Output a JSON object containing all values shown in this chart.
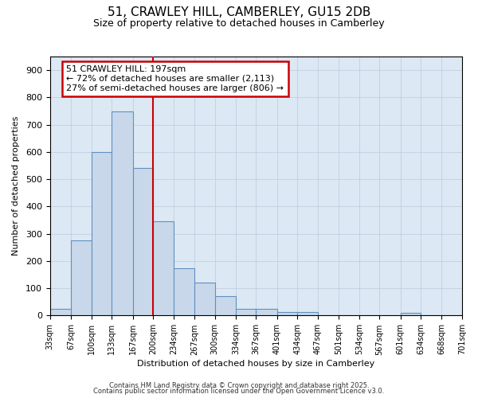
{
  "title1": "51, CRAWLEY HILL, CAMBERLEY, GU15 2DB",
  "title2": "Size of property relative to detached houses in Camberley",
  "xlabel": "Distribution of detached houses by size in Camberley",
  "ylabel": "Number of detached properties",
  "annotation_line1": "51 CRAWLEY HILL: 197sqm",
  "annotation_line2": "← 72% of detached houses are smaller (2,113)",
  "annotation_line3": "27% of semi-detached houses are larger (806) →",
  "bar_left_edges": [
    33,
    67,
    100,
    133,
    167,
    200,
    234,
    267,
    300,
    334,
    367,
    401,
    434,
    467,
    501,
    534,
    567,
    601,
    634,
    668
  ],
  "bar_widths": [
    34,
    33,
    33,
    34,
    33,
    34,
    33,
    33,
    34,
    33,
    34,
    33,
    33,
    34,
    33,
    33,
    34,
    33,
    34,
    33
  ],
  "bar_heights": [
    25,
    275,
    600,
    750,
    540,
    345,
    175,
    120,
    70,
    25,
    25,
    12,
    12,
    0,
    0,
    0,
    0,
    10,
    0,
    0
  ],
  "tick_labels": [
    "33sqm",
    "67sqm",
    "100sqm",
    "133sqm",
    "167sqm",
    "200sqm",
    "234sqm",
    "267sqm",
    "300sqm",
    "334sqm",
    "367sqm",
    "401sqm",
    "434sqm",
    "467sqm",
    "501sqm",
    "534sqm",
    "567sqm",
    "601sqm",
    "634sqm",
    "668sqm",
    "701sqm"
  ],
  "bar_color": "#c8d8ea",
  "bar_edge_color": "#6090c0",
  "red_line_x": 200,
  "ylim": [
    0,
    950
  ],
  "yticks": [
    0,
    100,
    200,
    300,
    400,
    500,
    600,
    700,
    800,
    900
  ],
  "grid_color": "#c0cfe0",
  "figure_bg": "#ffffff",
  "axes_bg": "#dce8f4",
  "annotation_box_facecolor": "#ffffff",
  "annotation_box_edgecolor": "#cc0000",
  "red_line_color": "#cc0000",
  "footer1": "Contains HM Land Registry data © Crown copyright and database right 2025.",
  "footer2": "Contains public sector information licensed under the Open Government Licence v3.0.",
  "title1_fontsize": 11,
  "title2_fontsize": 9,
  "xlabel_fontsize": 8,
  "ylabel_fontsize": 8,
  "tick_fontsize": 7,
  "ytick_fontsize": 8,
  "footer_fontsize": 6,
  "ann_fontsize": 8
}
